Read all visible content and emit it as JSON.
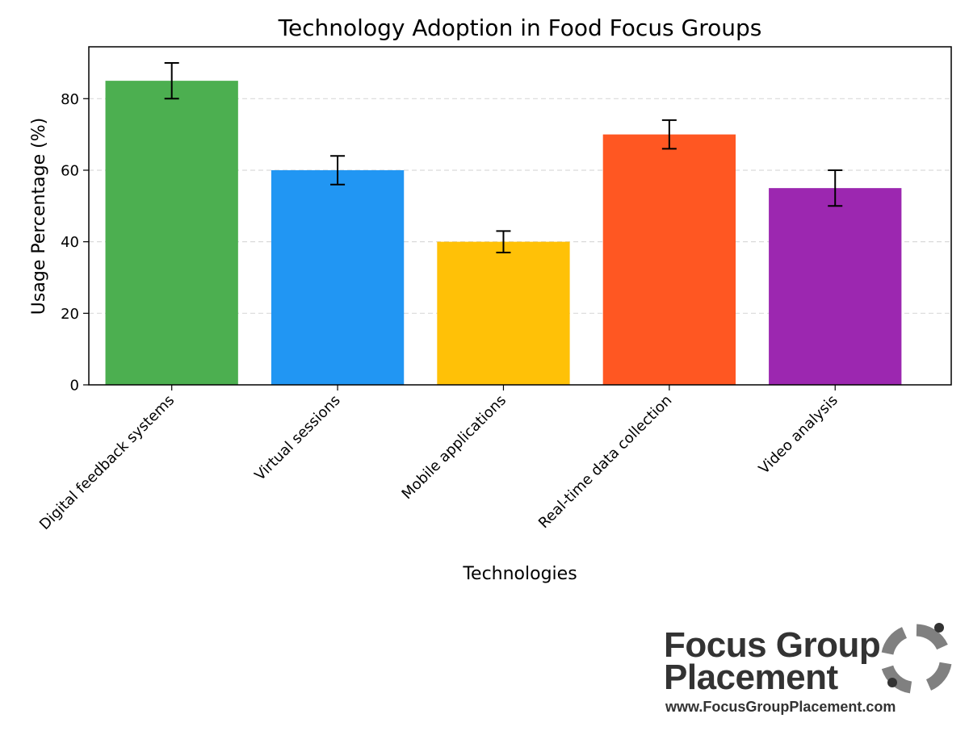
{
  "chart_data": {
    "type": "bar",
    "title": "Technology Adoption in Food Focus Groups",
    "xlabel": "Technologies",
    "ylabel": "Usage Percentage (%)",
    "categories": [
      "Digital feedback systems",
      "Virtual sessions",
      "Mobile applications",
      "Real-time data collection",
      "Video analysis"
    ],
    "values": [
      85,
      60,
      40,
      70,
      55
    ],
    "errors": [
      5,
      4,
      3,
      4,
      5
    ],
    "colors": [
      "#4CAF50",
      "#2196F3",
      "#FFC107",
      "#FF5722",
      "#9C27B0"
    ],
    "ylim": [
      0,
      94.5
    ],
    "yticks": [
      0,
      20,
      40,
      60,
      80
    ],
    "grid": "y-dashed",
    "legend": "none"
  },
  "logo": {
    "line1": "Focus Group",
    "line2": "Placement",
    "url": "www.FocusGroupPlacement.com",
    "icon": "ring-logo-icon",
    "color": "#333333",
    "icon_color": "#808080"
  }
}
